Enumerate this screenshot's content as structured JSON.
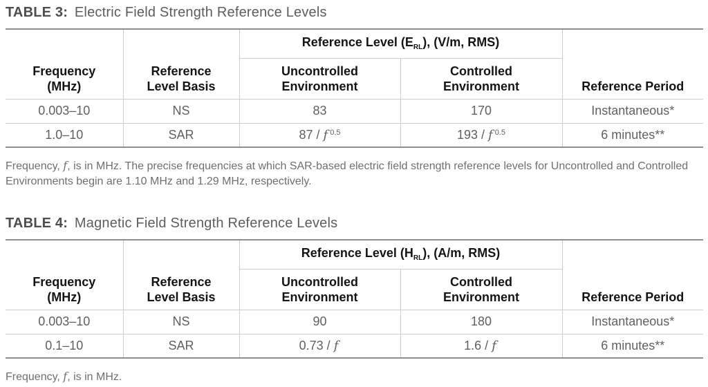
{
  "colors": {
    "border_strong": "#8e8e8e",
    "border_light": "#cccccc",
    "header_text": "#141414",
    "body_text": "#606060",
    "title_label": "#4d4d4d",
    "title_text": "#5d5d5d",
    "footnote_text": "#6f6f6f"
  },
  "tables": [
    {
      "title_label": "TABLE 3:",
      "title_text": "Electric Field Strength Reference Levels",
      "headers": {
        "frequency_l1": "Frequency",
        "frequency_l2": "(MHz)",
        "basis_l1": "Reference",
        "basis_l2": "Level Basis",
        "span_prefix": "Reference Level (E",
        "span_sub": "RL",
        "span_suffix": "), (V/m, RMS)",
        "uncontrolled_l1": "Uncontrolled",
        "uncontrolled_l2": "Environment",
        "controlled_l1": "Controlled",
        "controlled_l2": "Environment",
        "period": "Reference Period"
      },
      "rows": [
        {
          "frequency": "0.003–10",
          "basis": "NS",
          "uncontrolled": "83",
          "controlled": "170",
          "period": "Instantaneous*"
        },
        {
          "frequency": "1.0–10",
          "basis": "SAR",
          "uncontrolled": {
            "pre": "87 / ",
            "f": "f",
            "sup": "0.5"
          },
          "controlled": {
            "pre": "193 / ",
            "f": "f",
            "sup": "0.5"
          },
          "period": "6 minutes**"
        }
      ],
      "footnote": {
        "pre": "Frequency, ",
        "f": "f",
        "post": ", is in MHz. The precise frequencies at which SAR-based electric field strength reference levels for Uncontrolled and Controlled Environments begin are 1.10 MHz and 1.29 MHz, respectively."
      }
    },
    {
      "title_label": "TABLE 4:",
      "title_text": "Magnetic Field Strength Reference Levels",
      "headers": {
        "frequency_l1": "Frequency",
        "frequency_l2": "(MHz)",
        "basis_l1": "Reference",
        "basis_l2": "Level Basis",
        "span_prefix": "Reference Level (H",
        "span_sub": "RL",
        "span_suffix": "), (A/m, RMS)",
        "uncontrolled_l1": "Uncontrolled",
        "uncontrolled_l2": "Environment",
        "controlled_l1": "Controlled",
        "controlled_l2": "Environment",
        "period": "Reference Period"
      },
      "rows": [
        {
          "frequency": "0.003–10",
          "basis": "NS",
          "uncontrolled": "90",
          "controlled": "180",
          "period": "Instantaneous*"
        },
        {
          "frequency": "0.1–10",
          "basis": "SAR",
          "uncontrolled": {
            "pre": "0.73 / ",
            "f": "f",
            "sup": ""
          },
          "controlled": {
            "pre": "1.6 / ",
            "f": "f",
            "sup": ""
          },
          "period": "6 minutes**"
        }
      ],
      "footnote": {
        "pre": "Frequency, ",
        "f": "f",
        "post": ", is in MHz."
      }
    }
  ]
}
